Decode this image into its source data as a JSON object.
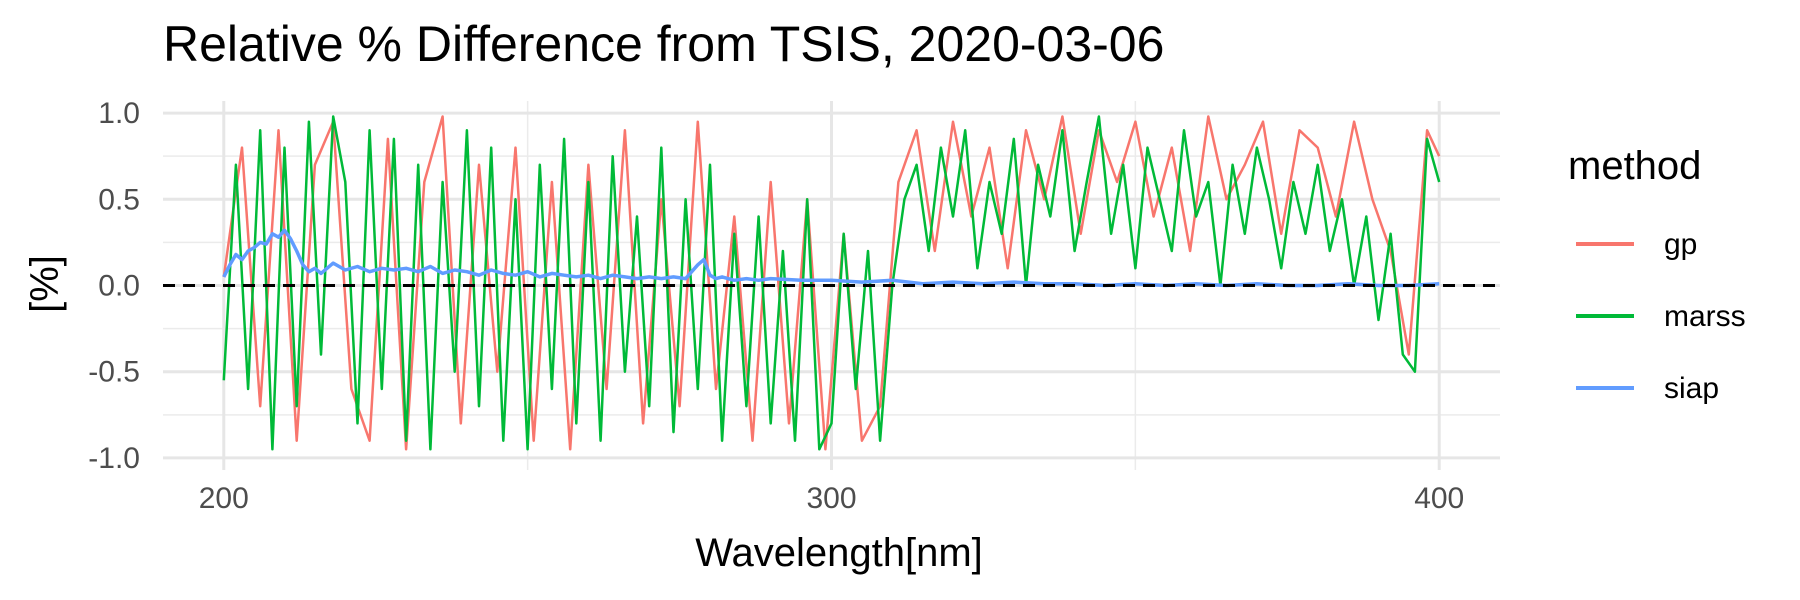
{
  "chart_data": {
    "type": "line",
    "title": "Relative % Difference from TSIS, 2020-03-06",
    "xlabel": "Wavelength[nm]",
    "ylabel": "[%]",
    "xlim": [
      190,
      410
    ],
    "ylim": [
      -1.07,
      1.07
    ],
    "x_ticks": [
      200,
      300,
      400
    ],
    "x_tick_labels": [
      "200",
      "300",
      "400"
    ],
    "y_ticks": [
      -1.0,
      -0.5,
      0.0,
      0.5,
      1.0
    ],
    "y_tick_labels": [
      "-1.0",
      "-0.5",
      "0.0",
      "0.5",
      "1.0"
    ],
    "grid": true,
    "reference_line": {
      "y": 0,
      "style": "dashed",
      "color": "#000000"
    },
    "legend": {
      "title": "method",
      "placement": "right",
      "entries": [
        {
          "label": "gp",
          "color": "#F8766D"
        },
        {
          "label": "marss",
          "color": "#00BA38"
        },
        {
          "label": "siap",
          "color": "#619CFF"
        }
      ]
    },
    "series": [
      {
        "name": "gp",
        "color": "#F8766D",
        "x": [
          200,
          203,
          206,
          209,
          212,
          215,
          218,
          221,
          224,
          227,
          230,
          233,
          236,
          239,
          242,
          245,
          248,
          251,
          254,
          257,
          260,
          263,
          266,
          269,
          272,
          275,
          278,
          281,
          284,
          287,
          290,
          293,
          296,
          299,
          302,
          305,
          308,
          311,
          314,
          317,
          320,
          323,
          326,
          329,
          332,
          335,
          338,
          341,
          344,
          347,
          350,
          353,
          356,
          359,
          362,
          365,
          368,
          371,
          374,
          377,
          380,
          383,
          386,
          389,
          392,
          395,
          398,
          400
        ],
        "y": [
          0.05,
          0.8,
          -0.7,
          0.9,
          -0.9,
          0.7,
          0.95,
          -0.6,
          -0.9,
          0.85,
          -0.95,
          0.6,
          0.98,
          -0.8,
          0.7,
          -0.5,
          0.8,
          -0.9,
          0.6,
          -0.95,
          0.7,
          -0.6,
          0.9,
          -0.8,
          0.5,
          -0.7,
          0.95,
          -0.6,
          0.4,
          -0.9,
          0.6,
          -0.8,
          0.5,
          -0.95,
          0.3,
          -0.9,
          -0.7,
          0.6,
          0.9,
          0.2,
          0.95,
          0.4,
          0.8,
          0.1,
          0.9,
          0.5,
          0.98,
          0.3,
          0.9,
          0.6,
          0.95,
          0.4,
          0.8,
          0.2,
          0.98,
          0.5,
          0.7,
          0.95,
          0.3,
          0.9,
          0.8,
          0.4,
          0.95,
          0.5,
          0.2,
          -0.4,
          0.9,
          0.75
        ]
      },
      {
        "name": "marss",
        "color": "#00BA38",
        "x": [
          200,
          202,
          204,
          206,
          208,
          210,
          212,
          214,
          216,
          218,
          220,
          222,
          224,
          226,
          228,
          230,
          232,
          234,
          236,
          238,
          240,
          242,
          244,
          246,
          248,
          250,
          252,
          254,
          256,
          258,
          260,
          262,
          264,
          266,
          268,
          270,
          272,
          274,
          276,
          278,
          280,
          282,
          284,
          286,
          288,
          290,
          292,
          294,
          296,
          298,
          300,
          302,
          304,
          306,
          308,
          310,
          312,
          314,
          316,
          318,
          320,
          322,
          324,
          326,
          328,
          330,
          332,
          334,
          336,
          338,
          340,
          342,
          344,
          346,
          348,
          350,
          352,
          354,
          356,
          358,
          360,
          362,
          364,
          366,
          368,
          370,
          372,
          374,
          376,
          378,
          380,
          382,
          384,
          386,
          388,
          390,
          392,
          394,
          396,
          398,
          400
        ],
        "y": [
          -0.55,
          0.7,
          -0.6,
          0.9,
          -0.95,
          0.8,
          -0.7,
          0.95,
          -0.4,
          0.98,
          0.6,
          -0.8,
          0.9,
          -0.6,
          0.85,
          -0.9,
          0.7,
          -0.95,
          0.6,
          -0.5,
          0.9,
          -0.7,
          0.8,
          -0.9,
          0.5,
          -0.95,
          0.7,
          -0.6,
          0.85,
          -0.8,
          0.6,
          -0.9,
          0.75,
          -0.5,
          0.4,
          -0.7,
          0.8,
          -0.85,
          0.5,
          -0.6,
          0.7,
          -0.9,
          0.3,
          -0.7,
          0.4,
          -0.8,
          0.2,
          -0.9,
          0.5,
          -0.95,
          -0.8,
          0.3,
          -0.6,
          0.2,
          -0.9,
          0.0,
          0.5,
          0.7,
          0.2,
          0.8,
          0.4,
          0.9,
          0.1,
          0.6,
          0.3,
          0.85,
          0.0,
          0.7,
          0.4,
          0.9,
          0.2,
          0.6,
          0.98,
          0.3,
          0.7,
          0.1,
          0.8,
          0.5,
          0.2,
          0.9,
          0.4,
          0.6,
          0.0,
          0.7,
          0.3,
          0.8,
          0.5,
          0.1,
          0.6,
          0.3,
          0.7,
          0.2,
          0.5,
          0.0,
          0.4,
          -0.2,
          0.3,
          -0.4,
          -0.5,
          0.85,
          0.6
        ]
      },
      {
        "name": "siap",
        "color": "#619CFF",
        "x": [
          200,
          201,
          202,
          203,
          204,
          205,
          206,
          207,
          208,
          209,
          210,
          211,
          212,
          213,
          214,
          215,
          216,
          218,
          220,
          222,
          224,
          226,
          228,
          230,
          232,
          234,
          236,
          238,
          240,
          242,
          244,
          246,
          248,
          250,
          252,
          254,
          256,
          258,
          260,
          262,
          264,
          266,
          268,
          270,
          272,
          274,
          276,
          278,
          279,
          280,
          281,
          282,
          284,
          286,
          288,
          290,
          295,
          300,
          305,
          310,
          315,
          320,
          325,
          330,
          335,
          340,
          345,
          350,
          355,
          360,
          365,
          370,
          375,
          380,
          385,
          390,
          395,
          400
        ],
        "y": [
          0.05,
          0.12,
          0.18,
          0.15,
          0.2,
          0.22,
          0.25,
          0.24,
          0.3,
          0.28,
          0.32,
          0.27,
          0.2,
          0.12,
          0.08,
          0.1,
          0.07,
          0.13,
          0.09,
          0.11,
          0.08,
          0.1,
          0.09,
          0.1,
          0.08,
          0.11,
          0.07,
          0.09,
          0.08,
          0.06,
          0.09,
          0.07,
          0.06,
          0.08,
          0.05,
          0.07,
          0.06,
          0.05,
          0.06,
          0.04,
          0.06,
          0.05,
          0.04,
          0.05,
          0.04,
          0.05,
          0.04,
          0.12,
          0.15,
          0.06,
          0.04,
          0.05,
          0.03,
          0.04,
          0.03,
          0.04,
          0.03,
          0.03,
          0.02,
          0.03,
          0.01,
          0.02,
          0.01,
          0.02,
          0.01,
          0.01,
          0.0,
          0.01,
          0.0,
          0.01,
          0.0,
          0.01,
          0.0,
          0.0,
          0.01,
          0.0,
          0.0,
          0.01
        ]
      }
    ]
  }
}
